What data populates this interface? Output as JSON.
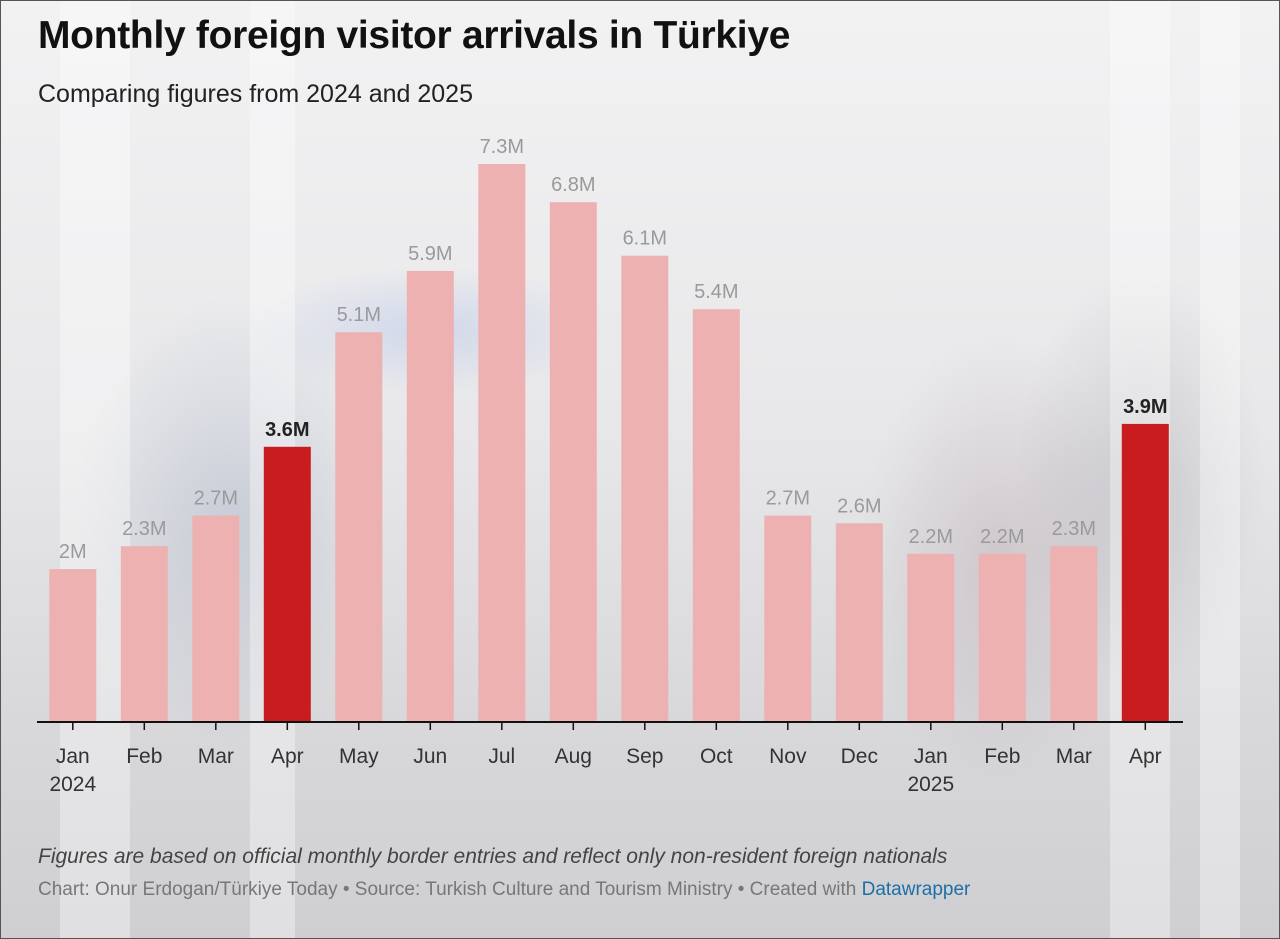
{
  "title": "Monthly foreign visitor arrivals in Türkiye",
  "subtitle": "Comparing figures from 2024 and 2025",
  "note": "Figures are based on official monthly border entries and reflect only non-resident foreign nationals",
  "credit": {
    "prefix": "Chart: Onur Erdogan/Türkiye Today • Source: Turkish Culture and Tourism Ministry • Created with ",
    "link": "Datawrapper"
  },
  "colors": {
    "normal": "#ecb1b0",
    "highlight": "#c81c1e",
    "axis": "#111111"
  },
  "chart_data": {
    "type": "bar",
    "unit": "M",
    "ylim": [
      0,
      7.3
    ],
    "categories": [
      "Jan",
      "Feb",
      "Mar",
      "Apr",
      "May",
      "Jun",
      "Jul",
      "Aug",
      "Sep",
      "Oct",
      "Nov",
      "Dec",
      "Jan",
      "Feb",
      "Mar",
      "Apr"
    ],
    "year_labels": [
      "2024",
      "",
      "",
      "",
      "",
      "",
      "",
      "",
      "",
      "",
      "",
      "",
      "2025",
      "",
      "",
      ""
    ],
    "values": [
      2.0,
      2.3,
      2.7,
      3.6,
      5.1,
      5.9,
      7.3,
      6.8,
      6.1,
      5.4,
      2.7,
      2.6,
      2.2,
      2.2,
      2.3,
      3.9
    ],
    "value_labels": [
      "2M",
      "2.3M",
      "2.7M",
      "3.6M",
      "5.1M",
      "5.9M",
      "7.3M",
      "6.8M",
      "6.1M",
      "5.4M",
      "2.7M",
      "2.6M",
      "2.2M",
      "2.2M",
      "2.3M",
      "3.9M"
    ],
    "highlighted": [
      false,
      false,
      false,
      true,
      false,
      false,
      false,
      false,
      false,
      false,
      false,
      false,
      false,
      false,
      false,
      true
    ]
  }
}
